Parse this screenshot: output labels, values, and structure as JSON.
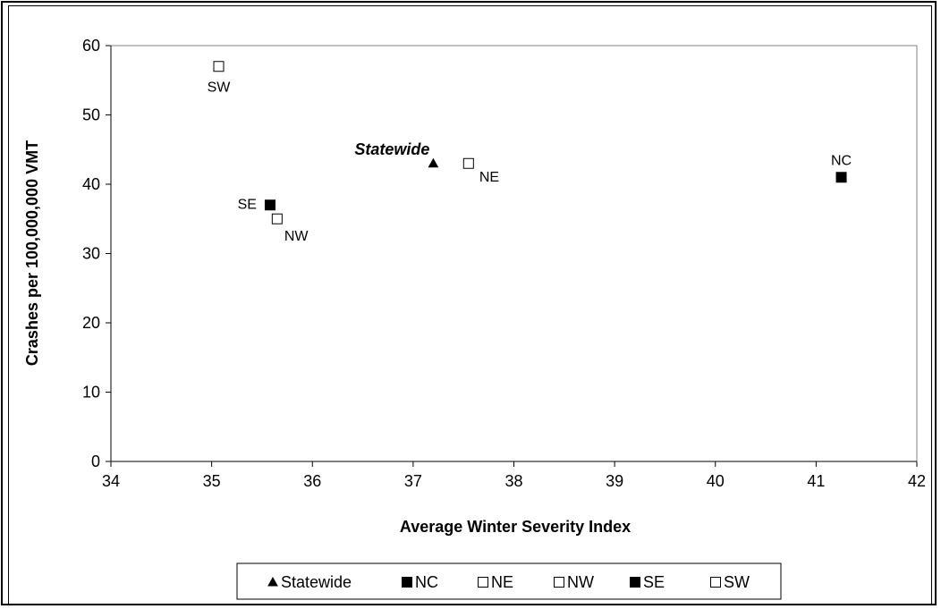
{
  "chart_data": {
    "type": "scatter",
    "xlabel": "Average Winter Severity Index",
    "ylabel": "Crashes per 100,000,000 VMT",
    "xlim": [
      34,
      42
    ],
    "ylim": [
      0,
      60
    ],
    "xticks": [
      34,
      35,
      36,
      37,
      38,
      39,
      40,
      41,
      42
    ],
    "yticks": [
      0,
      10,
      20,
      30,
      40,
      50,
      60
    ],
    "grid": false,
    "legend_position": "bottom",
    "series": [
      {
        "name": "Statewide",
        "marker": "triangle",
        "fill": "#000000",
        "label": "Statewide",
        "label_style": "bold-italic",
        "x": 37.2,
        "y": 43
      },
      {
        "name": "NC",
        "marker": "square",
        "fill": "#000000",
        "label": "NC",
        "x": 41.25,
        "y": 41
      },
      {
        "name": "NE",
        "marker": "square",
        "fill": "#ffffff",
        "label": "NE",
        "x": 37.55,
        "y": 43
      },
      {
        "name": "NW",
        "marker": "square",
        "fill": "#ffffff",
        "label": "NW",
        "x": 35.65,
        "y": 35
      },
      {
        "name": "SE",
        "marker": "square",
        "fill": "#000000",
        "label": "SE",
        "x": 35.58,
        "y": 37
      },
      {
        "name": "SW",
        "marker": "square",
        "fill": "#ffffff",
        "label": "SW",
        "x": 35.07,
        "y": 57
      }
    ]
  }
}
